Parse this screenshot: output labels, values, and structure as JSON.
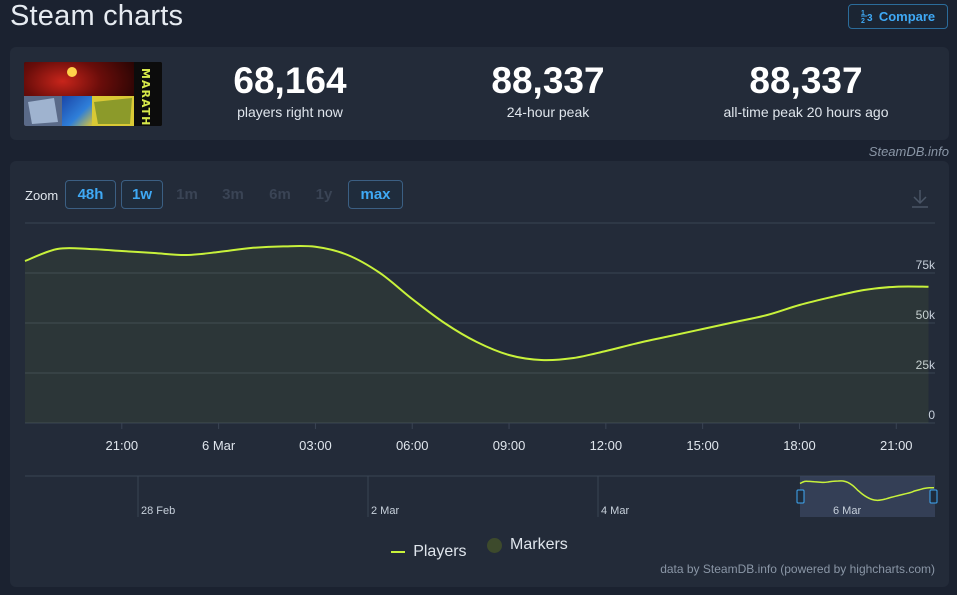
{
  "page": {
    "title": "Steam charts"
  },
  "compare": {
    "label": "Compare",
    "icon": "fraction-icon"
  },
  "stats": [
    {
      "value": "68,164",
      "label": "players right now"
    },
    {
      "value": "88,337",
      "label": "24-hour peak"
    },
    {
      "value": "88,337",
      "label": "all-time peak 20 hours ago"
    }
  ],
  "game": {
    "logo_text": "MARATHON"
  },
  "credit_top": "SteamDB.info",
  "zoom": {
    "label": "Zoom",
    "options": [
      {
        "label": "48h",
        "active": true
      },
      {
        "label": "1w",
        "active": true
      },
      {
        "label": "1m",
        "active": false
      },
      {
        "label": "3m",
        "active": false
      },
      {
        "label": "6m",
        "active": false
      },
      {
        "label": "1y",
        "active": false
      },
      {
        "label": "max",
        "active": true
      }
    ]
  },
  "legend": {
    "players": "Players",
    "markers": "Markers"
  },
  "credit_bottom": "data by SteamDB.info (powered by highcharts.com)",
  "colors": {
    "accent": "#3fa9f5",
    "series": "#c8f23b",
    "background": "#1b2230",
    "card": "#232b39"
  },
  "chart_data": {
    "type": "area",
    "title": "",
    "x_unit": "hours",
    "x_start": "5 Mar 18:00",
    "x": [
      18.0,
      19.0,
      20.0,
      21.0,
      22.0,
      23.0,
      24.0,
      25.0,
      26.0,
      27.0,
      28.0,
      29.0,
      30.0,
      31.0,
      32.0,
      33.0,
      34.0,
      35.0,
      36.0,
      37.0,
      38.0,
      39.0,
      40.0,
      41.0,
      42.0,
      43.0,
      44.0,
      45.0,
      46.0
    ],
    "series": [
      {
        "name": "Players",
        "color": "#c8f23b",
        "values": [
          81000,
          87000,
          87000,
          86000,
          85000,
          84000,
          85500,
          87500,
          88300,
          88100,
          84000,
          75000,
          62000,
          50000,
          40500,
          34000,
          31500,
          32500,
          36000,
          40000,
          43500,
          47000,
          50500,
          54000,
          59000,
          63000,
          66500,
          68164,
          68164
        ]
      }
    ],
    "x_ticks": [
      "21:00",
      "6 Mar",
      "03:00",
      "06:00",
      "09:00",
      "12:00",
      "15:00",
      "18:00",
      "21:00"
    ],
    "x_tick_values": [
      21,
      24,
      27,
      30,
      33,
      36,
      39,
      42,
      45
    ],
    "y_ticks": [
      "0",
      "25k",
      "50k",
      "75k"
    ],
    "y_tick_values": [
      0,
      25000,
      50000,
      75000
    ],
    "ylim": [
      0,
      100000
    ],
    "xlim": [
      18,
      46.2
    ],
    "grid": true,
    "legend_position": "bottom-center",
    "navigator": {
      "labels": [
        "28 Feb",
        "2 Mar",
        "4 Mar",
        "6 Mar"
      ],
      "label_values": [
        0,
        2,
        4,
        6
      ]
    }
  }
}
